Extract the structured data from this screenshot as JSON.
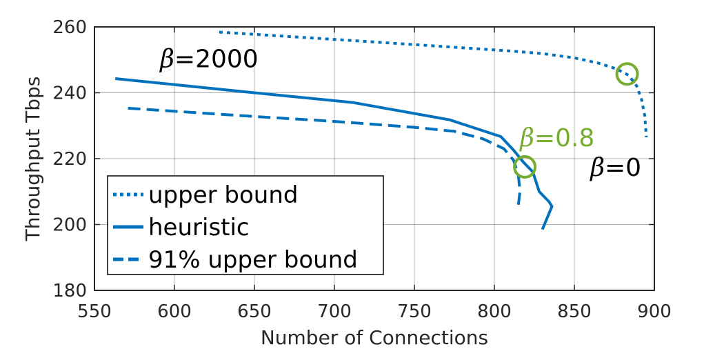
{
  "chart_data": {
    "type": "line",
    "title": "",
    "xlabel": "Number of Connections",
    "ylabel": "Throughput Tbps",
    "xlim": [
      550,
      900
    ],
    "ylim": [
      180,
      260
    ],
    "xticks": [
      550,
      600,
      650,
      700,
      750,
      800,
      850,
      900
    ],
    "yticks": [
      180,
      200,
      220,
      240,
      260
    ],
    "grid": true,
    "legend_position": "bottom-left",
    "series": [
      {
        "name": "upper bound",
        "style": "dotted",
        "color": "#0072BD",
        "points": [
          [
            628,
            258.4
          ],
          [
            700,
            256.2
          ],
          [
            760,
            254.3
          ],
          [
            810,
            252.7
          ],
          [
            830,
            251.9
          ],
          [
            850,
            250.6
          ],
          [
            865,
            249.0
          ],
          [
            876,
            247.3
          ],
          [
            884,
            245.3
          ],
          [
            889,
            242.0
          ],
          [
            892,
            238.0
          ],
          [
            894,
            233.0
          ],
          [
            895,
            226.5
          ]
        ]
      },
      {
        "name": "heuristic",
        "style": "solid",
        "color": "#0072BD",
        "points": [
          [
            563,
            244.3
          ],
          [
            650,
            240.0
          ],
          [
            712,
            237.0
          ],
          [
            772,
            231.8
          ],
          [
            804,
            226.7
          ],
          [
            812,
            222.6
          ],
          [
            818,
            219.0
          ],
          [
            824,
            216.0
          ],
          [
            828,
            210.0
          ],
          [
            834,
            207.0
          ],
          [
            836,
            205.5
          ],
          [
            833,
            202.0
          ],
          [
            830,
            198.5
          ]
        ]
      },
      {
        "name": "91% upper bound",
        "style": "dashed",
        "color": "#0072BD",
        "points": [
          [
            571,
            235.3
          ],
          [
            650,
            232.8
          ],
          [
            700,
            231.3
          ],
          [
            750,
            229.5
          ],
          [
            775,
            228.3
          ],
          [
            793,
            226.0
          ],
          [
            806,
            223.0
          ],
          [
            812,
            219.5
          ],
          [
            815,
            215.0
          ],
          [
            816,
            210.0
          ],
          [
            815,
            206.0
          ]
        ]
      }
    ],
    "markers": [
      {
        "x": 883,
        "y": 245.7,
        "shape": "circle",
        "color": "#77AC30"
      },
      {
        "x": 819,
        "y": 217.5,
        "shape": "circle",
        "color": "#77AC30"
      }
    ],
    "annotations": [
      {
        "symbol": "β",
        "value": "=2000",
        "x": 591,
        "y": 250.5,
        "color": "#000000"
      },
      {
        "symbol": "β",
        "value": "=0.8",
        "x": 816,
        "y": 226.5,
        "color": "#77AC30"
      },
      {
        "symbol": "β",
        "value": "=0",
        "x": 860,
        "y": 217.5,
        "color": "#000000"
      }
    ]
  }
}
